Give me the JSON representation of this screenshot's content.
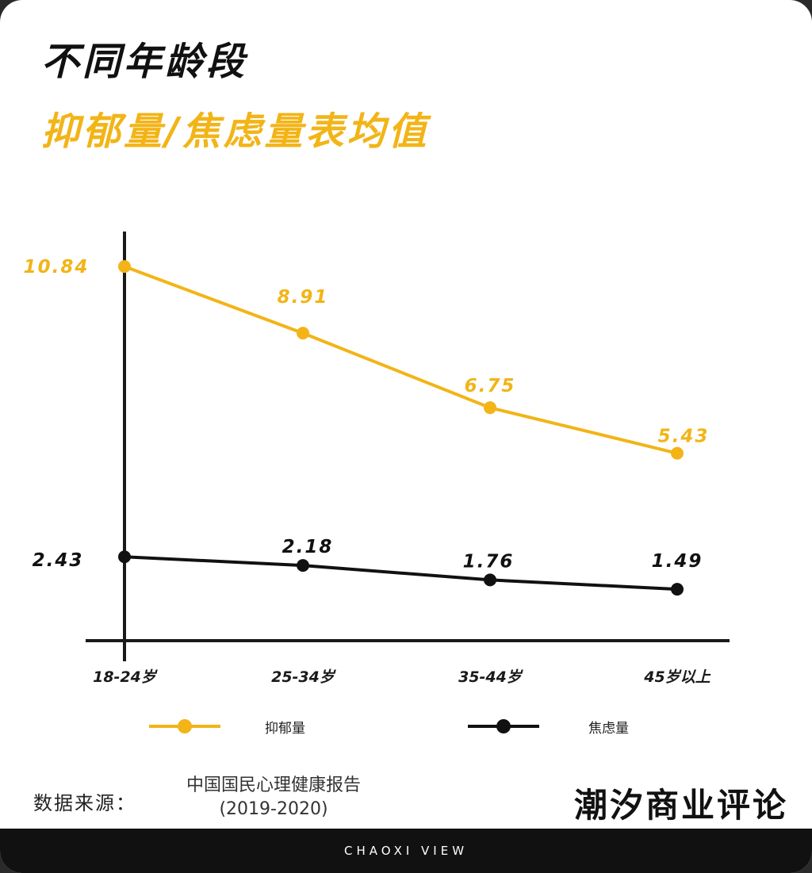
{
  "title": "不同年龄段",
  "subtitle": "抑郁量/焦虑量表均值",
  "colors": {
    "depression": "#f2b417",
    "anxiety": "#111111",
    "axis": "#1a1a1a"
  },
  "chart_data": {
    "type": "line",
    "categories": [
      "18-24岁",
      "25-34岁",
      "35-44岁",
      "45岁以上"
    ],
    "series": [
      {
        "name": "抑郁量",
        "values": [
          10.84,
          8.91,
          6.75,
          5.43
        ],
        "labels": [
          "10.84",
          "8.91",
          "6.75",
          "5.43"
        ]
      },
      {
        "name": "焦虑量",
        "values": [
          2.43,
          2.18,
          1.76,
          1.49
        ],
        "labels": [
          "2.43",
          "2.18",
          "1.76",
          "1.49"
        ]
      }
    ],
    "ylim": [
      0,
      11.9
    ],
    "grid": false,
    "legend_position": "bottom"
  },
  "legend": {
    "depression": "抑郁量",
    "anxiety": "焦虑量"
  },
  "source": {
    "label": "数据来源：",
    "line1": "中国国民心理健康报告",
    "line2": "(2019-2020)"
  },
  "brand": "潮汐商业评论",
  "footer": "CHAOXI VIEW"
}
